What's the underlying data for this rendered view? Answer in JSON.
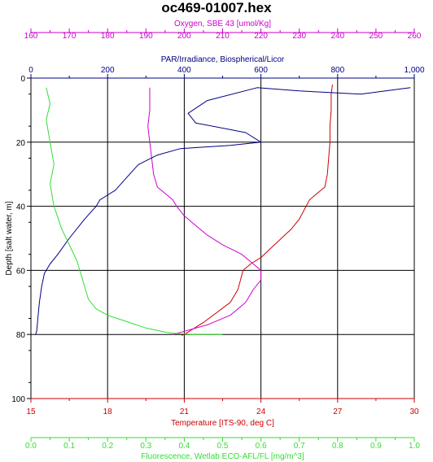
{
  "chart_data": {
    "type": "line",
    "title": "oc469-01007.hex",
    "y_axis": {
      "label": "Depth [salt water, m]",
      "range": [
        100,
        0
      ],
      "ticks": [
        "0",
        "20",
        "40",
        "60",
        "80",
        "100"
      ],
      "color": "#000000"
    },
    "x_axes": [
      {
        "key": "oxygen",
        "label": "Oxygen, SBE 43 [umol/Kg]",
        "position": "top-outer",
        "range": [
          160,
          260
        ],
        "ticks": [
          "160",
          "170",
          "180",
          "190",
          "200",
          "210",
          "220",
          "230",
          "240",
          "250",
          "260"
        ],
        "color": "#cc00cc"
      },
      {
        "key": "par",
        "label": "PAR/Irradiance, Biospherical/Licor",
        "position": "top-inner",
        "range": [
          0,
          1000
        ],
        "ticks": [
          "0",
          "200",
          "400",
          "600",
          "800",
          "1,000"
        ],
        "color": "#000080"
      },
      {
        "key": "temperature",
        "label": "Temperature [ITS-90, deg C]",
        "position": "bottom-inner",
        "range": [
          15,
          30
        ],
        "ticks": [
          "15",
          "18",
          "21",
          "24",
          "27",
          "30"
        ],
        "color": "#cc0000"
      },
      {
        "key": "fluorescence",
        "label": "Fluorescence, Wetlab ECO-AFL/FL [mg/m^3]",
        "position": "bottom-outer",
        "range": [
          0.0,
          1.0
        ],
        "ticks": [
          "0.0",
          "0.1",
          "0.2",
          "0.3",
          "0.4",
          "0.5",
          "0.6",
          "0.7",
          "0.8",
          "0.9",
          "1.0"
        ],
        "color": "#33dd33"
      }
    ],
    "grid": true,
    "series": [
      {
        "axis": "temperature",
        "color": "#cc0000",
        "points": [
          [
            26.8,
            2
          ],
          [
            26.75,
            5
          ],
          [
            26.75,
            10
          ],
          [
            26.7,
            15
          ],
          [
            26.7,
            20
          ],
          [
            26.65,
            25
          ],
          [
            26.6,
            30
          ],
          [
            26.5,
            34
          ],
          [
            26.2,
            36
          ],
          [
            25.9,
            38
          ],
          [
            25.7,
            41
          ],
          [
            25.5,
            44
          ],
          [
            25.2,
            47
          ],
          [
            24.8,
            50
          ],
          [
            24.4,
            53
          ],
          [
            24.0,
            56
          ],
          [
            23.6,
            58
          ],
          [
            23.3,
            60
          ],
          [
            23.2,
            63
          ],
          [
            23.1,
            66
          ],
          [
            22.8,
            70
          ],
          [
            22.3,
            73
          ],
          [
            21.8,
            76
          ],
          [
            21.4,
            78
          ],
          [
            21.0,
            80
          ],
          [
            20.9,
            80.3
          ]
        ]
      },
      {
        "axis": "oxygen",
        "color": "#cc00cc",
        "points": [
          [
            191,
            3
          ],
          [
            191,
            10
          ],
          [
            190.5,
            15
          ],
          [
            191,
            20
          ],
          [
            191.5,
            25
          ],
          [
            192,
            30
          ],
          [
            193,
            34
          ],
          [
            195,
            36
          ],
          [
            197,
            38
          ],
          [
            198,
            40
          ],
          [
            200,
            43
          ],
          [
            203,
            46
          ],
          [
            206,
            49
          ],
          [
            210,
            52
          ],
          [
            215,
            55
          ],
          [
            218,
            58
          ],
          [
            220,
            60
          ],
          [
            220,
            63
          ],
          [
            218,
            66
          ],
          [
            216,
            70
          ],
          [
            212,
            74
          ],
          [
            206,
            77
          ],
          [
            200,
            79
          ],
          [
            197,
            80
          ]
        ]
      },
      {
        "axis": "par",
        "color": "#000080",
        "points": [
          [
            990,
            3
          ],
          [
            860,
            5
          ],
          [
            700,
            4
          ],
          [
            590,
            3
          ],
          [
            460,
            7
          ],
          [
            410,
            11
          ],
          [
            430,
            14
          ],
          [
            560,
            17
          ],
          [
            600,
            20
          ],
          [
            520,
            21
          ],
          [
            390,
            22
          ],
          [
            330,
            24
          ],
          [
            280,
            27
          ],
          [
            250,
            31
          ],
          [
            220,
            35
          ],
          [
            180,
            38
          ],
          [
            170,
            40
          ],
          [
            140,
            44
          ],
          [
            100,
            50
          ],
          [
            70,
            55
          ],
          [
            50,
            58
          ],
          [
            35,
            61
          ],
          [
            28,
            65
          ],
          [
            22,
            70
          ],
          [
            18,
            75
          ],
          [
            15,
            79
          ],
          [
            12,
            80
          ]
        ]
      },
      {
        "axis": "fluorescence",
        "color": "#33dd33",
        "points": [
          [
            0.04,
            3
          ],
          [
            0.05,
            8
          ],
          [
            0.04,
            13
          ],
          [
            0.05,
            20
          ],
          [
            0.06,
            27
          ],
          [
            0.05,
            33
          ],
          [
            0.06,
            40
          ],
          [
            0.08,
            47
          ],
          [
            0.1,
            52
          ],
          [
            0.12,
            57
          ],
          [
            0.13,
            61
          ],
          [
            0.14,
            65
          ],
          [
            0.15,
            69
          ],
          [
            0.17,
            72
          ],
          [
            0.2,
            74
          ],
          [
            0.25,
            76
          ],
          [
            0.3,
            78
          ],
          [
            0.36,
            79.5
          ],
          [
            0.42,
            80
          ],
          [
            0.5,
            80
          ]
        ]
      }
    ]
  }
}
